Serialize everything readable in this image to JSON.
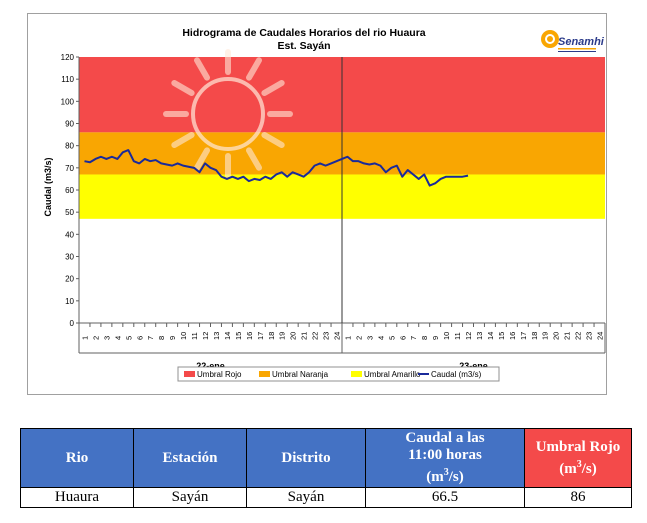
{
  "chart_data": {
    "type": "line",
    "title": "Hidrograma  de Caudales Horarios  del rio Huaura",
    "subtitle": "Est. Sayán",
    "ylabel": "Caudal  (m3/s)",
    "ylim": [
      0,
      120
    ],
    "yticks": [
      0,
      10,
      20,
      30,
      40,
      50,
      60,
      70,
      80,
      90,
      100,
      110,
      120
    ],
    "hour_labels": [
      "1",
      "2",
      "3",
      "4",
      "5",
      "6",
      "7",
      "8",
      "9",
      "10",
      "11",
      "12",
      "13",
      "14",
      "15",
      "16",
      "17",
      "18",
      "19",
      "20",
      "21",
      "22",
      "23",
      "24"
    ],
    "days": [
      "22-ene",
      "23-ene"
    ],
    "thresholds": [
      {
        "name": "Umbral Rojo",
        "from": 86,
        "to": 120,
        "color": "#f44a4a"
      },
      {
        "name": "Umbral Naranja",
        "from": 67,
        "to": 86,
        "color": "#f9a602"
      },
      {
        "name": "Umbral Amarillo",
        "from": 47,
        "to": 67,
        "color": "#ffff00"
      }
    ],
    "series": [
      {
        "name": "Caudal (m3/s)",
        "color": "#1a2a9a",
        "x": [
          0,
          0.5,
          1,
          1.5,
          2,
          2.5,
          3,
          3.5,
          4,
          4.5,
          5,
          5.5,
          6,
          6.5,
          7,
          7.5,
          8,
          8.5,
          9,
          9.5,
          10,
          10.5,
          11,
          11.5,
          12,
          12.5,
          13,
          13.5,
          14,
          14.5,
          15,
          15.5,
          16,
          16.5,
          17,
          17.5,
          18,
          18.5,
          19,
          19.5,
          20,
          20.5,
          21,
          21.5,
          22,
          22.5,
          23,
          23.5,
          24,
          24.5,
          25,
          25.5,
          26,
          26.5,
          27,
          27.5,
          28,
          28.5,
          29,
          29.5,
          30,
          30.5,
          31,
          31.5,
          32,
          32.5,
          33,
          33.5,
          34,
          34.5,
          35
        ],
        "y": [
          73,
          72.5,
          74,
          75,
          74,
          75,
          74,
          77,
          78,
          73,
          72,
          74,
          73,
          73.5,
          72,
          71.5,
          71,
          72,
          71,
          70.5,
          70,
          68,
          72,
          70,
          69,
          66,
          65,
          66,
          65,
          66,
          64,
          65,
          64.5,
          66,
          65,
          67,
          68,
          66,
          68,
          67,
          66,
          68,
          71,
          72,
          71,
          72,
          73,
          74,
          75,
          73,
          73,
          72,
          71.5,
          72,
          71,
          68,
          70,
          71,
          66,
          69,
          67,
          65,
          67,
          62,
          63,
          65,
          66,
          66,
          66,
          66,
          66.5
        ]
      }
    ],
    "legend": [
      "Umbral Rojo",
      "Umbral Naranja",
      "Umbral Amarillo",
      "Caudal (m3/s)"
    ],
    "logo_text": "Senamhi"
  },
  "table": {
    "headers": {
      "rio": "Rio",
      "estacion": "Estación",
      "distrito": "Distrito",
      "caudal_1": "Caudal a las",
      "caudal_2": "11:00 horas",
      "caudal_3": "(m",
      "caudal_sup": "3",
      "caudal_4": "/s)",
      "umbral_1": "Umbral Rojo",
      "umbral_2": "(m",
      "umbral_sup": "3",
      "umbral_3": "/s)"
    },
    "row": {
      "rio": "Huaura",
      "estacion": "Sayán",
      "distrito": "Sayán",
      "caudal": "66.5",
      "umbral": "86"
    }
  }
}
